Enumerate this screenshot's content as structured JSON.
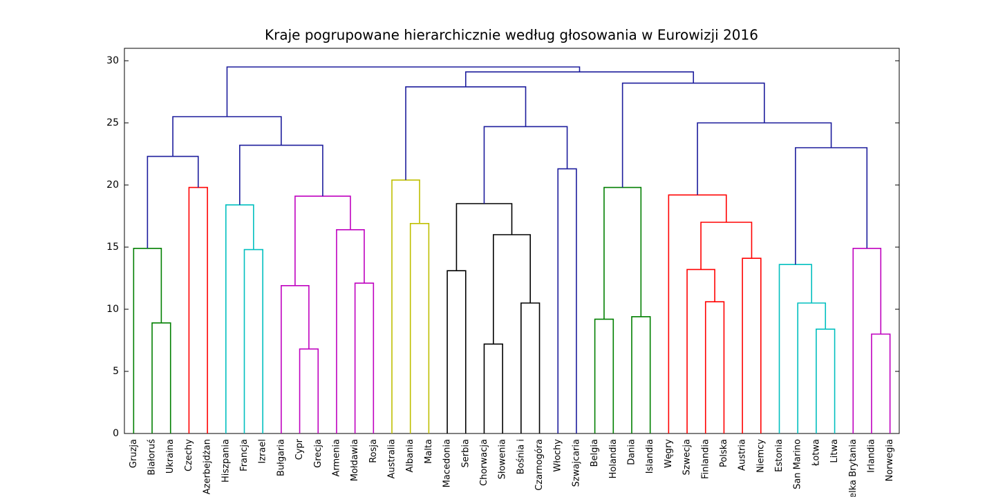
{
  "chart_data": {
    "type": "dendrogram",
    "title": "Kraje pogrupowane hierarchicznie według głosowania w Eurowizji 2016",
    "ylim": [
      0,
      31
    ],
    "yticks": [
      0,
      5,
      10,
      15,
      20,
      25,
      30
    ],
    "tree": {
      "height": 29.5,
      "color": "#1c1c9c",
      "children": [
        {
          "height": 25.5,
          "color": "#1c1c9c",
          "children": [
            {
              "height": 22.3,
              "color": "#1c1c9c",
              "children": [
                {
                  "height": 14.9,
                  "color": "#007f00",
                  "children": [
                    "Gruzja",
                    {
                      "height": 8.9,
                      "color": "#007f00",
                      "children": [
                        "Białoruś",
                        "Ukraina"
                      ]
                    }
                  ]
                },
                {
                  "height": 19.8,
                  "color": "#ff0000",
                  "children": [
                    "Czechy",
                    "Azerbejdżan"
                  ]
                }
              ]
            },
            {
              "height": 23.2,
              "color": "#1c1c9c",
              "children": [
                {
                  "height": 18.4,
                  "color": "#00bfbf",
                  "children": [
                    "Hiszpania",
                    {
                      "height": 14.8,
                      "color": "#00bfbf",
                      "children": [
                        "Francja",
                        "Izrael"
                      ]
                    }
                  ]
                },
                {
                  "height": 19.1,
                  "color": "#bf00bf",
                  "children": [
                    {
                      "height": 11.9,
                      "color": "#bf00bf",
                      "children": [
                        "Bułgaria",
                        {
                          "height": 6.8,
                          "color": "#bf00bf",
                          "children": [
                            "Cypr",
                            "Grecja"
                          ]
                        }
                      ]
                    },
                    {
                      "height": 16.4,
                      "color": "#bf00bf",
                      "children": [
                        "Armenia",
                        {
                          "height": 12.1,
                          "color": "#bf00bf",
                          "children": [
                            "Mołdawia",
                            "Rosja"
                          ]
                        }
                      ]
                    }
                  ]
                }
              ]
            }
          ]
        },
        {
          "height": 29.1,
          "color": "#1c1c9c",
          "children": [
            {
              "height": 27.9,
              "color": "#1c1c9c",
              "children": [
                {
                  "height": 20.4,
                  "color": "#bfbf00",
                  "children": [
                    "Australia",
                    {
                      "height": 16.9,
                      "color": "#bfbf00",
                      "children": [
                        "Albania",
                        "Malta"
                      ]
                    }
                  ]
                },
                {
                  "height": 24.7,
                  "color": "#1c1c9c",
                  "children": [
                    {
                      "height": 18.5,
                      "color": "#000000",
                      "children": [
                        {
                          "height": 13.1,
                          "color": "#000000",
                          "children": [
                            "Macedonia",
                            "Serbia"
                          ]
                        },
                        {
                          "height": 16.0,
                          "color": "#000000",
                          "children": [
                            {
                              "height": 7.2,
                              "color": "#000000",
                              "children": [
                                "Chorwacja",
                                "Słowenia"
                              ]
                            },
                            {
                              "height": 10.5,
                              "color": "#000000",
                              "children": [
                                "Bośnia i",
                                "Czarnogóra"
                              ]
                            }
                          ]
                        }
                      ]
                    },
                    {
                      "height": 21.3,
                      "color": "#1c1c9c",
                      "children": [
                        "Włochy",
                        "Szwajcaria"
                      ]
                    }
                  ]
                }
              ]
            },
            {
              "height": 28.2,
              "color": "#1c1c9c",
              "children": [
                {
                  "height": 19.8,
                  "color": "#007f00",
                  "children": [
                    {
                      "height": 9.2,
                      "color": "#007f00",
                      "children": [
                        "Belgia",
                        "Holandia"
                      ]
                    },
                    {
                      "height": 9.4,
                      "color": "#007f00",
                      "children": [
                        "Dania",
                        "Islandia"
                      ]
                    }
                  ]
                },
                {
                  "height": 25.0,
                  "color": "#1c1c9c",
                  "children": [
                    {
                      "height": 19.2,
                      "color": "#ff0000",
                      "children": [
                        "Węgry",
                        {
                          "height": 17.0,
                          "color": "#ff0000",
                          "children": [
                            {
                              "height": 13.2,
                              "color": "#ff0000",
                              "children": [
                                "Szwecja",
                                {
                                  "height": 10.6,
                                  "color": "#ff0000",
                                  "children": [
                                    "Finlandia",
                                    "Polska"
                                  ]
                                }
                              ]
                            },
                            {
                              "height": 14.1,
                              "color": "#ff0000",
                              "children": [
                                "Austria",
                                "Niemcy"
                              ]
                            }
                          ]
                        }
                      ]
                    },
                    {
                      "height": 23.0,
                      "color": "#1c1c9c",
                      "children": [
                        {
                          "height": 13.6,
                          "color": "#00bfbf",
                          "children": [
                            "Estonia",
                            {
                              "height": 10.5,
                              "color": "#00bfbf",
                              "children": [
                                "San Marino",
                                {
                                  "height": 8.4,
                                  "color": "#00bfbf",
                                  "children": [
                                    "Łotwa",
                                    "Litwa"
                                  ]
                                }
                              ]
                            }
                          ]
                        },
                        {
                          "height": 14.9,
                          "color": "#bf00bf",
                          "children": [
                            "Wielka Brytania",
                            {
                              "height": 8.0,
                              "color": "#bf00bf",
                              "children": [
                                "Irlandia",
                                "Norwegia"
                              ]
                            }
                          ]
                        }
                      ]
                    }
                  ]
                }
              ]
            }
          ]
        }
      ]
    }
  }
}
